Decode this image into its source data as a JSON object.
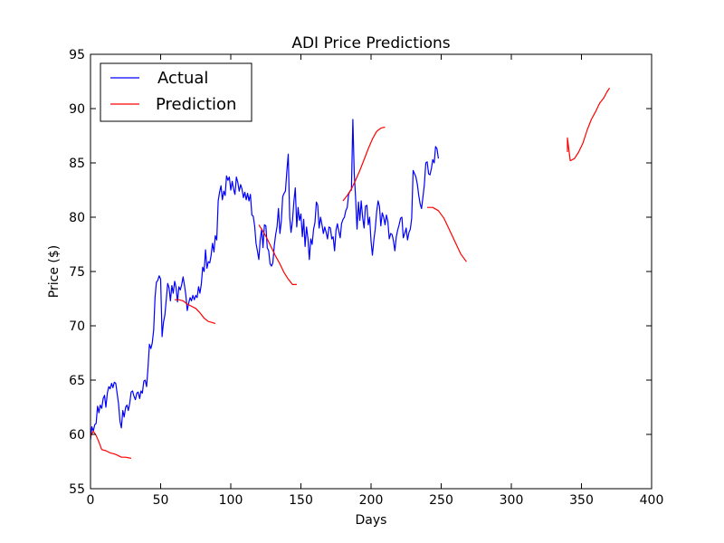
{
  "chart_data": {
    "type": "line",
    "title": "ADI Price Predictions",
    "xlabel": "Days",
    "ylabel": "Price ($)",
    "xlim": [
      0,
      400
    ],
    "ylim": [
      55,
      95
    ],
    "x_ticks": [
      "0",
      "50",
      "100",
      "150",
      "200",
      "250",
      "300",
      "350",
      "400"
    ],
    "y_ticks": [
      "55",
      "60",
      "65",
      "70",
      "75",
      "80",
      "85",
      "90",
      "95"
    ],
    "grid": false,
    "legend": {
      "placement": "top-left",
      "entries": [
        "Actual",
        "Prediction"
      ]
    },
    "colors": {
      "actual": "#0000ff",
      "prediction": "#ff0000"
    },
    "series": [
      {
        "name": "Actual",
        "points": [
          [
            0,
            59.5
          ],
          [
            1,
            60.7
          ],
          [
            2,
            60.3
          ],
          [
            3,
            60.9
          ],
          [
            4,
            61.0
          ],
          [
            5,
            62.6
          ],
          [
            6,
            62.0
          ],
          [
            7,
            62.7
          ],
          [
            8,
            62.4
          ],
          [
            9,
            63.3
          ],
          [
            10,
            63.6
          ],
          [
            11,
            62.5
          ],
          [
            12,
            63.8
          ],
          [
            13,
            64.4
          ],
          [
            14,
            64.2
          ],
          [
            15,
            64.7
          ],
          [
            16,
            64.3
          ],
          [
            17,
            64.8
          ],
          [
            18,
            64.7
          ],
          [
            19,
            63.8
          ],
          [
            20,
            62.8
          ],
          [
            21,
            61.2
          ],
          [
            22,
            60.6
          ],
          [
            23,
            62.2
          ],
          [
            24,
            61.6
          ],
          [
            25,
            62.5
          ],
          [
            26,
            62.7
          ],
          [
            27,
            62.2
          ],
          [
            28,
            62.9
          ],
          [
            29,
            63.9
          ],
          [
            30,
            64.0
          ],
          [
            31,
            63.5
          ],
          [
            32,
            63.2
          ],
          [
            33,
            63.8
          ],
          [
            34,
            63.9
          ],
          [
            35,
            63.3
          ],
          [
            36,
            64.0
          ],
          [
            37,
            63.8
          ],
          [
            38,
            64.9
          ],
          [
            39,
            65.0
          ],
          [
            40,
            64.4
          ],
          [
            41,
            66.2
          ],
          [
            42,
            68.3
          ],
          [
            43,
            67.9
          ],
          [
            44,
            68.4
          ],
          [
            45,
            69.6
          ],
          [
            46,
            72.6
          ],
          [
            47,
            74.0
          ],
          [
            48,
            74.2
          ],
          [
            49,
            74.6
          ],
          [
            50,
            74.3
          ],
          [
            51,
            69.0
          ],
          [
            52,
            70.3
          ],
          [
            53,
            71.0
          ],
          [
            54,
            72.4
          ],
          [
            55,
            73.9
          ],
          [
            56,
            73.5
          ],
          [
            57,
            72.3
          ],
          [
            58,
            73.7
          ],
          [
            59,
            73.0
          ],
          [
            60,
            74.1
          ],
          [
            61,
            73.5
          ],
          [
            62,
            72.2
          ],
          [
            63,
            73.6
          ],
          [
            64,
            73.3
          ],
          [
            65,
            73.8
          ],
          [
            66,
            74.5
          ],
          [
            67,
            73.7
          ],
          [
            68,
            72.8
          ],
          [
            69,
            71.4
          ],
          [
            70,
            72.1
          ],
          [
            71,
            72.6
          ],
          [
            72,
            72.3
          ],
          [
            73,
            72.8
          ],
          [
            74,
            72.4
          ],
          [
            75,
            72.8
          ],
          [
            76,
            72.6
          ],
          [
            77,
            73.6
          ],
          [
            78,
            73.0
          ],
          [
            79,
            73.8
          ],
          [
            80,
            75.4
          ],
          [
            81,
            75.0
          ],
          [
            82,
            77.0
          ],
          [
            83,
            75.3
          ],
          [
            84,
            75.9
          ],
          [
            85,
            75.8
          ],
          [
            86,
            76.5
          ],
          [
            87,
            77.6
          ],
          [
            88,
            76.8
          ],
          [
            89,
            78.3
          ],
          [
            90,
            77.9
          ],
          [
            91,
            81.5
          ],
          [
            92,
            82.3
          ],
          [
            93,
            82.9
          ],
          [
            94,
            81.6
          ],
          [
            95,
            82.4
          ],
          [
            96,
            82.0
          ],
          [
            97,
            83.8
          ],
          [
            98,
            83.4
          ],
          [
            99,
            83.7
          ],
          [
            100,
            82.5
          ],
          [
            101,
            83.3
          ],
          [
            102,
            82.6
          ],
          [
            103,
            82.1
          ],
          [
            104,
            83.7
          ],
          [
            105,
            83.2
          ],
          [
            106,
            82.4
          ],
          [
            107,
            83.0
          ],
          [
            108,
            82.6
          ],
          [
            109,
            81.8
          ],
          [
            110,
            82.3
          ],
          [
            111,
            81.6
          ],
          [
            112,
            82.2
          ],
          [
            113,
            81.5
          ],
          [
            114,
            82.1
          ],
          [
            115,
            80.2
          ],
          [
            116,
            80.1
          ],
          [
            117,
            79.2
          ],
          [
            118,
            77.6
          ],
          [
            119,
            76.9
          ],
          [
            120,
            76.1
          ],
          [
            121,
            77.9
          ],
          [
            122,
            78.9
          ],
          [
            123,
            77.2
          ],
          [
            124,
            79.3
          ],
          [
            125,
            79.2
          ],
          [
            126,
            77.2
          ],
          [
            127,
            76.9
          ],
          [
            128,
            75.7
          ],
          [
            129,
            75.5
          ],
          [
            130,
            75.8
          ],
          [
            131,
            77.4
          ],
          [
            132,
            78.4
          ],
          [
            133,
            79.1
          ],
          [
            134,
            80.8
          ],
          [
            135,
            78.5
          ],
          [
            136,
            79.6
          ],
          [
            137,
            81.9
          ],
          [
            138,
            82.2
          ],
          [
            139,
            82.4
          ],
          [
            140,
            84.3
          ],
          [
            141,
            85.8
          ],
          [
            142,
            80.0
          ],
          [
            143,
            78.6
          ],
          [
            144,
            79.7
          ],
          [
            145,
            81.5
          ],
          [
            146,
            82.7
          ],
          [
            147,
            79.1
          ],
          [
            148,
            80.9
          ],
          [
            149,
            79.7
          ],
          [
            150,
            80.3
          ],
          [
            151,
            78.2
          ],
          [
            152,
            79.8
          ],
          [
            153,
            77.3
          ],
          [
            154,
            79.1
          ],
          [
            155,
            78.0
          ],
          [
            156,
            76.1
          ],
          [
            157,
            78.0
          ],
          [
            158,
            77.5
          ],
          [
            159,
            78.9
          ],
          [
            160,
            79.5
          ],
          [
            161,
            81.4
          ],
          [
            162,
            81.1
          ],
          [
            163,
            79.0
          ],
          [
            164,
            80.0
          ],
          [
            165,
            79.3
          ],
          [
            166,
            78.5
          ],
          [
            167,
            79.1
          ],
          [
            168,
            78.6
          ],
          [
            169,
            78.0
          ],
          [
            170,
            79.1
          ],
          [
            171,
            79.0
          ],
          [
            172,
            78.0
          ],
          [
            173,
            78.2
          ],
          [
            174,
            76.9
          ],
          [
            175,
            78.8
          ],
          [
            176,
            79.4
          ],
          [
            177,
            78.7
          ],
          [
            178,
            78.1
          ],
          [
            179,
            79.4
          ],
          [
            180,
            79.8
          ],
          [
            181,
            80.0
          ],
          [
            182,
            80.6
          ],
          [
            183,
            80.9
          ],
          [
            184,
            82.1
          ],
          [
            185,
            82.4
          ],
          [
            186,
            82.5
          ],
          [
            187,
            89.0
          ],
          [
            188,
            84.1
          ],
          [
            189,
            81.8
          ],
          [
            190,
            78.9
          ],
          [
            191,
            81.4
          ],
          [
            192,
            79.7
          ],
          [
            193,
            81.5
          ],
          [
            194,
            80.0
          ],
          [
            195,
            79.0
          ],
          [
            196,
            81.0
          ],
          [
            197,
            81.1
          ],
          [
            198,
            79.3
          ],
          [
            199,
            80.0
          ],
          [
            200,
            77.8
          ],
          [
            201,
            76.5
          ],
          [
            202,
            77.9
          ],
          [
            203,
            78.9
          ],
          [
            204,
            80.5
          ],
          [
            205,
            81.5
          ],
          [
            206,
            81.0
          ],
          [
            207,
            79.2
          ],
          [
            208,
            80.4
          ],
          [
            209,
            80.0
          ],
          [
            210,
            79.3
          ],
          [
            211,
            80.2
          ],
          [
            212,
            79.6
          ],
          [
            213,
            78.0
          ],
          [
            214,
            78.5
          ],
          [
            215,
            78.4
          ],
          [
            216,
            77.8
          ],
          [
            217,
            76.9
          ],
          [
            218,
            78.2
          ],
          [
            219,
            78.8
          ],
          [
            220,
            79.3
          ],
          [
            221,
            79.9
          ],
          [
            222,
            80.0
          ],
          [
            223,
            78.1
          ],
          [
            224,
            78.5
          ],
          [
            225,
            79.0
          ],
          [
            226,
            77.9
          ],
          [
            227,
            78.6
          ],
          [
            228,
            78.9
          ],
          [
            229,
            79.9
          ],
          [
            230,
            84.3
          ],
          [
            231,
            84.0
          ],
          [
            232,
            83.7
          ],
          [
            233,
            83.0
          ],
          [
            234,
            82.0
          ],
          [
            235,
            81.2
          ],
          [
            236,
            80.8
          ],
          [
            237,
            81.9
          ],
          [
            238,
            83.0
          ],
          [
            239,
            85.0
          ],
          [
            240,
            85.1
          ],
          [
            241,
            84.0
          ],
          [
            242,
            83.9
          ],
          [
            243,
            84.5
          ],
          [
            244,
            85.3
          ],
          [
            245,
            85.0
          ],
          [
            246,
            86.5
          ],
          [
            247,
            86.3
          ],
          [
            248,
            85.4
          ]
        ]
      },
      {
        "name": "Prediction",
        "segments": [
          [
            [
              0,
              59.8
            ],
            [
              2,
              60.3
            ],
            [
              4,
              59.9
            ],
            [
              6,
              59.3
            ],
            [
              8,
              58.6
            ],
            [
              11,
              58.5
            ],
            [
              14,
              58.3
            ],
            [
              17,
              58.2
            ],
            [
              19,
              58.1
            ],
            [
              22,
              57.9
            ],
            [
              25,
              57.9
            ],
            [
              29,
              57.8
            ]
          ],
          [
            [
              60,
              72.4
            ],
            [
              63,
              72.4
            ],
            [
              66,
              72.3
            ],
            [
              69,
              72.0
            ],
            [
              72,
              71.8
            ],
            [
              75,
              71.6
            ],
            [
              78,
              71.2
            ],
            [
              81,
              70.7
            ],
            [
              84,
              70.4
            ],
            [
              87,
              70.3
            ],
            [
              89,
              70.2
            ]
          ],
          [
            [
              120,
              79.3
            ],
            [
              123,
              78.7
            ],
            [
              126,
              78.0
            ],
            [
              129,
              77.2
            ],
            [
              132,
              76.4
            ],
            [
              135,
              75.7
            ],
            [
              138,
              74.9
            ],
            [
              141,
              74.3
            ],
            [
              144,
              73.8
            ],
            [
              147,
              73.8
            ]
          ],
          [
            [
              180,
              81.5
            ],
            [
              183,
              82.0
            ],
            [
              186,
              82.6
            ],
            [
              189,
              83.4
            ],
            [
              192,
              84.3
            ],
            [
              195,
              85.3
            ],
            [
              198,
              86.3
            ],
            [
              201,
              87.2
            ],
            [
              204,
              87.9
            ],
            [
              207,
              88.2
            ],
            [
              210,
              88.3
            ]
          ],
          [
            [
              240,
              80.9
            ],
            [
              244,
              80.9
            ],
            [
              248,
              80.6
            ],
            [
              252,
              79.9
            ],
            [
              256,
              78.8
            ],
            [
              260,
              77.7
            ],
            [
              264,
              76.6
            ],
            [
              268,
              75.9
            ]
          ],
          [
            [
              340,
              86.0
            ],
            [
              340,
              87.3
            ],
            [
              342,
              85.2
            ],
            [
              345,
              85.4
            ],
            [
              348,
              86.0
            ],
            [
              351,
              86.8
            ],
            [
              354,
              88.0
            ],
            [
              357,
              89.0
            ],
            [
              360,
              89.7
            ],
            [
              363,
              90.5
            ],
            [
              366,
              91.0
            ],
            [
              368,
              91.5
            ],
            [
              370,
              91.9
            ]
          ]
        ]
      }
    ]
  }
}
